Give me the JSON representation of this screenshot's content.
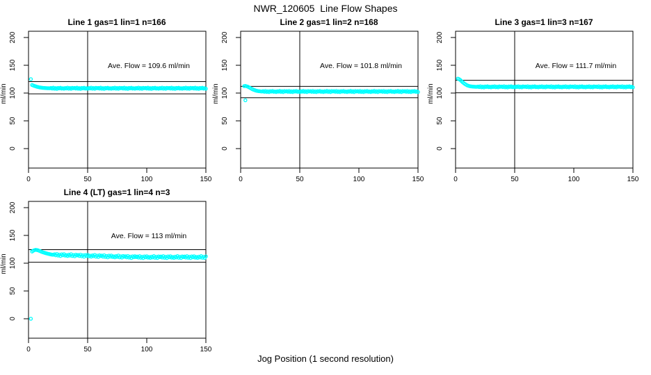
{
  "figure": {
    "title": "NWR_120605  Line Flow Shapes",
    "xlabel": "Jog Position (1 second resolution)",
    "ylabel": "ml/min",
    "point_color": "#00FFFF",
    "axis_color": "#000000",
    "background_color": "#FFFFFF"
  },
  "chart_data": [
    {
      "type": "scatter",
      "title": "Line 1 gas=1 lin=1 n=166",
      "annotation": "Ave. Flow =  109.6  ml/min",
      "ave_flow_ml_min": 109.6,
      "n": 166,
      "xticks": [
        0,
        50,
        100,
        150
      ],
      "yticks": [
        0,
        50,
        100,
        150,
        200
      ],
      "xlim": [
        0,
        150
      ],
      "ylim": [
        0,
        200
      ],
      "vline_x": 50,
      "hlines": [
        120.6,
        98.6
      ],
      "outliers": [
        [
          2,
          125
        ]
      ],
      "series": {
        "x_start": 3,
        "x_step": 1,
        "y": [
          114.5,
          113.6,
          112.8,
          112.1,
          111.4,
          110.9,
          110.4,
          110.0,
          109.7,
          109.4,
          109.2,
          109.0,
          108.9,
          108.8,
          108.7,
          108.6,
          109.2,
          108.1,
          109.6,
          107.8,
          108.9,
          107.5,
          109.3,
          108.4,
          109.5,
          108.0,
          108.8,
          107.7,
          109.1,
          108.3,
          109.7,
          107.9,
          109.0,
          107.6,
          109.4,
          108.6,
          109.2,
          108.1,
          109.6,
          107.8,
          108.9,
          107.5,
          109.3,
          108.4,
          109.5,
          108.0,
          108.8,
          107.7,
          109.1,
          108.3,
          109.7,
          107.9,
          109.0,
          107.6,
          109.4,
          108.6,
          109.2,
          108.1,
          109.6,
          107.8,
          108.9,
          107.5,
          109.3,
          108.4,
          109.5,
          108.0,
          108.8,
          107.7,
          109.1,
          108.3,
          109.7,
          107.9,
          109.0,
          107.6,
          109.4,
          108.6,
          109.2,
          108.1,
          109.6,
          107.8,
          108.9,
          107.5,
          109.3,
          108.4,
          109.5,
          108.0,
          108.8,
          107.7,
          109.1,
          108.3,
          109.7,
          107.9,
          109.0,
          107.6,
          109.4,
          108.6,
          109.2,
          108.1,
          109.6,
          107.8,
          108.9,
          107.5,
          109.3,
          108.4,
          109.5,
          108.0,
          108.8,
          107.7,
          109.1,
          108.3,
          109.7,
          107.9,
          109.0,
          107.6,
          109.4,
          108.6,
          109.2,
          108.1,
          109.6,
          107.8,
          108.9,
          107.5,
          109.3,
          108.4,
          109.5,
          108.0,
          108.8,
          107.7,
          109.1,
          108.3,
          109.7,
          107.9,
          109.0,
          107.6,
          109.4,
          108.6,
          109.2,
          108.1,
          109.6,
          107.8,
          108.9,
          107.5,
          109.3,
          108.4,
          109.5,
          108.0,
          108.8,
          107.7
        ]
      }
    },
    {
      "type": "scatter",
      "title": "Line 2 gas=1 lin=2 n=168",
      "annotation": "Ave. Flow =  101.8  ml/min",
      "ave_flow_ml_min": 101.8,
      "n": 168,
      "xticks": [
        0,
        50,
        100,
        150
      ],
      "yticks": [
        0,
        50,
        100,
        150,
        200
      ],
      "xlim": [
        0,
        150
      ],
      "ylim": [
        0,
        200
      ],
      "vline_x": 50,
      "hlines": [
        112.0,
        91.6
      ],
      "outliers": [
        [
          4,
          87
        ]
      ],
      "series": {
        "x_start": 3,
        "x_step": 1,
        "y": [
          112.5,
          112.8,
          112.3,
          111.5,
          110.4,
          109.2,
          108.0,
          106.9,
          105.9,
          105.1,
          104.4,
          103.9,
          103.5,
          103.2,
          103.0,
          102.8,
          103.4,
          102.3,
          103.8,
          102.0,
          103.1,
          101.7,
          103.5,
          102.6,
          103.7,
          102.2,
          103.0,
          101.9,
          103.3,
          102.5,
          103.9,
          102.1,
          103.2,
          101.8,
          103.6,
          102.8,
          103.4,
          102.3,
          103.8,
          102.0,
          103.1,
          101.7,
          103.5,
          102.6,
          103.7,
          102.2,
          103.0,
          101.9,
          103.3,
          102.5,
          103.9,
          102.1,
          103.2,
          101.8,
          103.6,
          102.8,
          103.4,
          102.3,
          103.8,
          102.0,
          103.1,
          101.7,
          103.5,
          102.6,
          103.7,
          102.2,
          103.0,
          101.9,
          103.3,
          102.5,
          103.9,
          102.1,
          103.2,
          101.8,
          103.6,
          102.8,
          103.4,
          102.3,
          103.8,
          102.0,
          103.1,
          101.7,
          103.5,
          102.6,
          103.7,
          102.2,
          103.0,
          101.9,
          103.3,
          102.5,
          103.9,
          102.1,
          103.2,
          101.8,
          103.6,
          102.8,
          103.4,
          102.3,
          103.8,
          102.0,
          103.1,
          101.7,
          103.5,
          102.6,
          103.7,
          102.2,
          103.0,
          101.9,
          103.3,
          102.5,
          103.9,
          102.1,
          103.2,
          101.8,
          103.6,
          102.8,
          103.4,
          102.3,
          103.8,
          102.0,
          103.1,
          101.7,
          103.5,
          102.6,
          103.7,
          102.2,
          103.0,
          101.9,
          103.3,
          102.5,
          103.9,
          102.1,
          103.2,
          101.8,
          103.6,
          102.8,
          103.4,
          102.3,
          103.8,
          102.0,
          103.1,
          101.7,
          103.5,
          102.6,
          103.7,
          102.2,
          103.0,
          101.9
        ]
      }
    },
    {
      "type": "scatter",
      "title": "Line 3 gas=1 lin=3 n=167",
      "annotation": "Ave. Flow =  111.7  ml/min",
      "ave_flow_ml_min": 111.7,
      "n": 167,
      "xticks": [
        0,
        50,
        100,
        150
      ],
      "yticks": [
        0,
        50,
        100,
        150,
        200
      ],
      "xlim": [
        0,
        150
      ],
      "ylim": [
        0,
        200
      ],
      "vline_x": 50,
      "hlines": [
        122.9,
        100.5
      ],
      "outliers": [],
      "series": {
        "x_start": 2,
        "x_step": 1,
        "y": [
          126.0,
          125.0,
          123.5,
          121.5,
          119.5,
          117.8,
          116.2,
          114.9,
          113.8,
          113.0,
          112.4,
          112.0,
          111.7,
          111.5,
          111.4,
          111.3,
          111.2,
          111.8,
          110.7,
          112.2,
          110.4,
          111.5,
          110.1,
          111.9,
          111.0,
          112.1,
          110.6,
          111.4,
          110.3,
          111.7,
          110.9,
          112.3,
          110.5,
          111.6,
          110.2,
          112.0,
          111.2,
          111.8,
          110.7,
          112.2,
          110.4,
          111.5,
          110.1,
          111.9,
          111.0,
          112.1,
          110.6,
          111.4,
          110.3,
          111.7,
          110.9,
          112.3,
          110.5,
          111.6,
          110.2,
          112.0,
          111.2,
          111.8,
          110.7,
          112.2,
          110.4,
          111.5,
          110.1,
          111.9,
          111.0,
          112.1,
          110.6,
          111.4,
          110.3,
          111.7,
          110.9,
          112.3,
          110.5,
          111.6,
          110.2,
          112.0,
          111.2,
          111.8,
          110.7,
          112.2,
          110.4,
          111.5,
          110.1,
          111.9,
          111.0,
          112.1,
          110.6,
          111.4,
          110.3,
          111.7,
          110.9,
          112.3,
          110.5,
          111.6,
          110.2,
          112.0,
          111.2,
          111.8,
          110.7,
          112.2,
          110.4,
          111.5,
          110.1,
          111.9,
          111.0,
          112.1,
          110.6,
          111.4,
          110.3,
          111.7,
          110.9,
          112.3,
          110.5,
          111.6,
          110.2,
          112.0,
          111.2,
          111.8,
          110.7,
          112.2,
          110.4,
          111.5,
          110.1,
          111.9,
          111.0,
          112.1,
          110.6,
          111.4,
          110.3,
          111.7,
          110.9,
          112.3,
          110.5,
          111.6,
          110.2,
          112.0,
          111.2,
          111.8,
          110.7,
          112.2,
          110.4,
          111.5,
          110.1,
          111.9,
          111.0,
          112.1,
          110.6,
          111.4,
          110.3
        ]
      }
    },
    {
      "type": "scatter",
      "title": "Line 4 (LT) gas=1 lin=4 n=3",
      "annotation": "Ave. Flow =  113  ml/min",
      "ave_flow_ml_min": 113,
      "n": 3,
      "xticks": [
        0,
        50,
        100,
        150
      ],
      "yticks": [
        0,
        50,
        100,
        150,
        200
      ],
      "xlim": [
        0,
        150
      ],
      "ylim": [
        0,
        200
      ],
      "vline_x": 50,
      "hlines": [
        124.3,
        101.7
      ],
      "outliers": [
        [
          2,
          0
        ]
      ],
      "series": {
        "x_start": 3,
        "x_step": 1,
        "y": [
          121.0,
          122.5,
          123.5,
          124.0,
          123.8,
          123.2,
          122.4,
          121.5,
          120.6,
          119.8,
          119.1,
          118.4,
          117.8,
          117.2,
          116.7,
          116.2,
          115.8,
          115.4,
          115.2,
          116.1,
          114.2,
          116.6,
          113.7,
          115.4,
          113.0,
          116.0,
          114.3,
          116.2,
          113.6,
          114.8,
          113.0,
          115.2,
          113.8,
          116.1,
          113.0,
          114.8,
          112.5,
          115.4,
          114.0,
          114.9,
          113.0,
          115.4,
          112.5,
          114.2,
          111.8,
          114.8,
          113.1,
          115.0,
          112.4,
          113.6,
          111.8,
          114.0,
          112.6,
          114.9,
          111.8,
          113.6,
          111.3,
          114.2,
          112.8,
          113.7,
          111.8,
          114.2,
          111.3,
          113.0,
          110.6,
          113.6,
          111.9,
          113.8,
          111.2,
          112.4,
          110.6,
          112.8,
          111.4,
          113.7,
          110.6,
          112.4,
          110.1,
          113.0,
          111.6,
          112.5,
          110.6,
          113.0,
          110.1,
          111.8,
          109.4,
          112.4,
          110.7,
          112.6,
          111.0,
          112.0,
          110.1,
          112.6,
          109.7,
          111.5,
          109.2,
          112.2,
          110.6,
          112.5,
          110.0,
          111.3,
          109.5,
          111.8,
          110.4,
          112.8,
          109.8,
          111.6,
          109.4,
          112.3,
          111.0,
          112.0,
          110.1,
          112.6,
          109.7,
          111.5,
          109.2,
          112.2,
          110.6,
          112.5,
          110.0,
          111.3,
          109.5,
          111.8,
          110.4,
          112.8,
          109.8,
          111.6,
          109.4,
          112.3,
          111.0,
          112.0,
          110.1,
          112.6,
          109.7,
          111.5,
          109.2,
          112.2,
          110.6,
          112.5,
          110.0,
          111.3,
          109.5,
          111.8,
          110.4,
          112.8,
          109.8,
          111.6,
          109.4,
          112.3
        ]
      }
    }
  ]
}
